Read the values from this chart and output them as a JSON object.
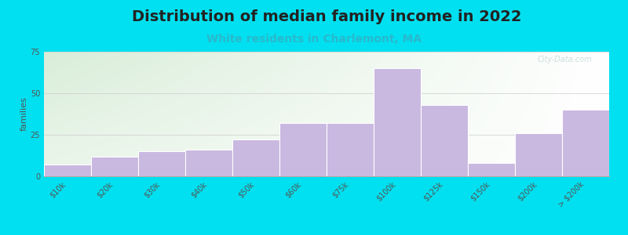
{
  "title": "Distribution of median family income in 2022",
  "subtitle": "White residents in Charlemont, MA",
  "ylabel": "families",
  "categories": [
    "$10k",
    "$20k",
    "$30k",
    "$40k",
    "$50k",
    "$60k",
    "$75k",
    "$100k",
    "$125k",
    "$150k",
    "$200k",
    "> $200k"
  ],
  "values": [
    7,
    12,
    15,
    16,
    22,
    32,
    32,
    65,
    43,
    8,
    26,
    40
  ],
  "bar_color": "#c9b8e0",
  "bar_edgecolor": "#ffffff",
  "background_outer": "#00e0f0",
  "plot_bg_left_top": "#daf0da",
  "plot_bg_right_bottom": "#f5f5f5",
  "title_fontsize": 14,
  "subtitle_fontsize": 10,
  "subtitle_color": "#2ab8cc",
  "ylabel_fontsize": 8,
  "tick_fontsize": 7,
  "ylim": [
    0,
    75
  ],
  "yticks": [
    0,
    25,
    50,
    75
  ],
  "watermark": "City-Data.com"
}
